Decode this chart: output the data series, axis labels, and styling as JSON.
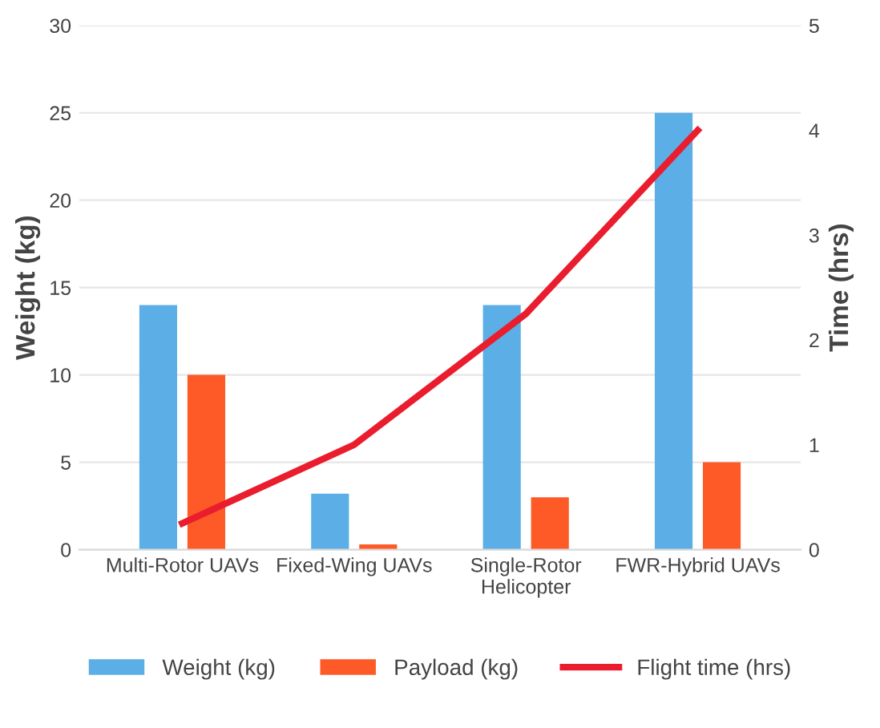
{
  "chart_data": {
    "type": "bar",
    "categories": [
      "Multi-Rotor UAVs",
      "Fixed-Wing UAVs",
      "Single-Rotor\nHelicopter",
      "FWR-Hybrid UAVs"
    ],
    "ylabel": "Weight (kg)",
    "y2label": "Time (hrs)",
    "ylim": [
      0,
      30
    ],
    "yticks": [
      0,
      5,
      10,
      15,
      20,
      25,
      30
    ],
    "y2lim": [
      0,
      5
    ],
    "y2ticks": [
      0,
      1,
      2,
      3,
      4,
      5
    ],
    "grid": "y",
    "legend": "bottom",
    "series": [
      {
        "name": "Weight (kg)",
        "color": "#5baee6",
        "values": [
          14,
          3.2,
          14,
          25
        ]
      },
      {
        "name": "Payload (kg)",
        "color": "#fd5a28",
        "values": [
          10,
          0.3,
          3,
          5
        ]
      },
      {
        "name": "Flight time (hrs)",
        "type": "line",
        "axis": "y2",
        "color": "#ea1d2e",
        "values": [
          0.25,
          1,
          2.25,
          4
        ]
      }
    ]
  }
}
